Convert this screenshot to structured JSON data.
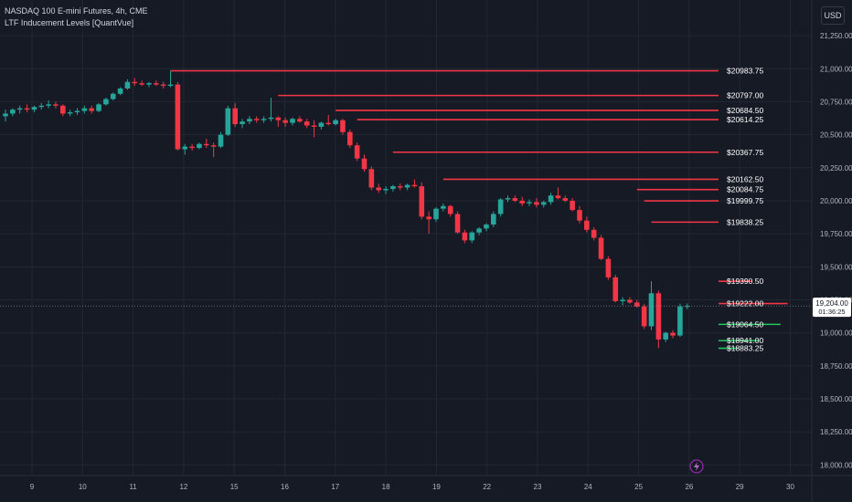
{
  "legend": {
    "symbol_line": "NASDAQ 100 E-mini Futures, 4h, CME",
    "indicator_line": "LTF Inducement Levels [QuantVue]"
  },
  "currency_button": "USD",
  "current_price": {
    "value": "19,204.00",
    "countdown": "01:36:25"
  },
  "colors": {
    "background": "#161a25",
    "grid": "#232733",
    "axis_text": "#b2b5be",
    "bull": "#26a69a",
    "bear": "#f23645",
    "resistance_line": "#f23645",
    "support_line": "#22c55e",
    "level_label": "#ffffff",
    "price_tag_bg": "#ffffff"
  },
  "icons": {
    "bottom_marker": "lightning-bolt-icon"
  },
  "chart_data": {
    "type": "candlestick",
    "x_tick_labels": [
      "9",
      "10",
      "11",
      "12",
      "15",
      "16",
      "17",
      "18",
      "19",
      "22",
      "23",
      "24",
      "25",
      "26",
      "29",
      "30"
    ],
    "y_ticks": [
      18000,
      18250,
      18500,
      18750,
      19000,
      19250,
      19500,
      19750,
      20000,
      20250,
      20500,
      20750,
      21000,
      21250
    ],
    "y_tick_labels": [
      "18,000.00",
      "18,250.00",
      "18,500.00",
      "18,750.00",
      "19,000.00",
      "19,250.00",
      "19,500.00",
      "19,750.00",
      "20,000.00",
      "20,250.00",
      "20,500.00",
      "20,750.00",
      "21,000.00",
      "21,250.00"
    ],
    "ylim": [
      17920,
      21520
    ],
    "candles": [
      [
        20640,
        20690,
        20600,
        20660
      ],
      [
        20660,
        20700,
        20640,
        20690
      ],
      [
        20690,
        20720,
        20660,
        20700
      ],
      [
        20700,
        20730,
        20670,
        20690
      ],
      [
        20690,
        20720,
        20670,
        20710
      ],
      [
        20710,
        20740,
        20690,
        20720
      ],
      [
        20720,
        20760,
        20700,
        20730
      ],
      [
        20730,
        20750,
        20700,
        20720
      ],
      [
        20720,
        20730,
        20640,
        20660
      ],
      [
        20660,
        20690,
        20640,
        20670
      ],
      [
        20670,
        20700,
        20650,
        20680
      ],
      [
        20680,
        20720,
        20660,
        20700
      ],
      [
        20700,
        20720,
        20660,
        20680
      ],
      [
        20680,
        20740,
        20670,
        20730
      ],
      [
        20730,
        20780,
        20720,
        20770
      ],
      [
        20770,
        20820,
        20760,
        20810
      ],
      [
        20810,
        20860,
        20800,
        20850
      ],
      [
        20850,
        20920,
        20840,
        20900
      ],
      [
        20900,
        20930,
        20870,
        20890
      ],
      [
        20890,
        20910,
        20870,
        20880
      ],
      [
        20880,
        20900,
        20860,
        20890
      ],
      [
        20890,
        20910,
        20870,
        20880
      ],
      [
        20880,
        20900,
        20850,
        20870
      ],
      [
        20870,
        20984,
        20860,
        20880
      ],
      [
        20880,
        20900,
        20380,
        20390
      ],
      [
        20390,
        20430,
        20350,
        20410
      ],
      [
        20410,
        20430,
        20380,
        20400
      ],
      [
        20400,
        20440,
        20390,
        20430
      ],
      [
        20430,
        20470,
        20400,
        20420
      ],
      [
        20420,
        20440,
        20330,
        20410
      ],
      [
        20410,
        20520,
        20400,
        20500
      ],
      [
        20500,
        20720,
        20490,
        20700
      ],
      [
        20700,
        20740,
        20560,
        20580
      ],
      [
        20580,
        20620,
        20550,
        20600
      ],
      [
        20600,
        20640,
        20580,
        20620
      ],
      [
        20620,
        20640,
        20590,
        20610
      ],
      [
        20610,
        20640,
        20590,
        20620
      ],
      [
        20620,
        20780,
        20600,
        20630
      ],
      [
        20630,
        20640,
        20560,
        20610
      ],
      [
        20610,
        20630,
        20560,
        20590
      ],
      [
        20590,
        20630,
        20570,
        20620
      ],
      [
        20620,
        20640,
        20590,
        20600
      ],
      [
        20600,
        20620,
        20550,
        20570
      ],
      [
        20570,
        20610,
        20480,
        20560
      ],
      [
        20560,
        20600,
        20540,
        20590
      ],
      [
        20590,
        20650,
        20570,
        20580
      ],
      [
        20580,
        20620,
        20570,
        20610
      ],
      [
        20610,
        20620,
        20500,
        20520
      ],
      [
        20520,
        20540,
        20400,
        20420
      ],
      [
        20420,
        20440,
        20300,
        20320
      ],
      [
        20320,
        20350,
        20220,
        20240
      ],
      [
        20240,
        20260,
        20080,
        20100
      ],
      [
        20100,
        20130,
        20060,
        20080
      ],
      [
        20080,
        20110,
        20050,
        20090
      ],
      [
        20090,
        20120,
        20070,
        20110
      ],
      [
        20110,
        20130,
        20080,
        20100
      ],
      [
        20100,
        20130,
        20080,
        20120
      ],
      [
        20120,
        20162,
        20100,
        20110
      ],
      [
        20110,
        20140,
        19860,
        19880
      ],
      [
        19880,
        19920,
        19750,
        19860
      ],
      [
        19860,
        19950,
        19840,
        19940
      ],
      [
        19940,
        19980,
        19920,
        19960
      ],
      [
        19960,
        19970,
        19880,
        19900
      ],
      [
        19900,
        19920,
        19750,
        19760
      ],
      [
        19760,
        19780,
        19680,
        19700
      ],
      [
        19700,
        19770,
        19680,
        19760
      ],
      [
        19760,
        19800,
        19740,
        19790
      ],
      [
        19790,
        19830,
        19770,
        19820
      ],
      [
        19820,
        19920,
        19800,
        19900
      ],
      [
        19900,
        20020,
        19880,
        20010
      ],
      [
        20010,
        20040,
        19990,
        20020
      ],
      [
        20020,
        20040,
        19990,
        20000
      ],
      [
        20000,
        20030,
        19960,
        19980
      ],
      [
        19980,
        20010,
        19960,
        19990
      ],
      [
        19990,
        20020,
        19950,
        19970
      ],
      [
        19970,
        20000,
        19950,
        19990
      ],
      [
        19990,
        20060,
        19970,
        20040
      ],
      [
        20040,
        20100,
        20010,
        20020
      ],
      [
        20020,
        20040,
        19990,
        20000
      ],
      [
        20000,
        20020,
        19920,
        19930
      ],
      [
        19930,
        19960,
        19830,
        19850
      ],
      [
        19850,
        19880,
        19760,
        19780
      ],
      [
        19780,
        19800,
        19700,
        19720
      ],
      [
        19720,
        19740,
        19550,
        19560
      ],
      [
        19560,
        19580,
        19400,
        19420
      ],
      [
        19420,
        19440,
        19230,
        19240
      ],
      [
        19240,
        19270,
        19210,
        19250
      ],
      [
        19250,
        19270,
        19220,
        19230
      ],
      [
        19230,
        19250,
        19190,
        19200
      ],
      [
        19200,
        19220,
        19030,
        19050
      ],
      [
        19050,
        19391,
        19020,
        19300
      ],
      [
        19300,
        19320,
        18884,
        18950
      ],
      [
        18950,
        19010,
        18930,
        19000
      ],
      [
        19000,
        19020,
        18960,
        18980
      ],
      [
        18980,
        19220,
        18970,
        19200
      ],
      [
        19200,
        19222,
        19180,
        19204
      ]
    ],
    "levels": [
      {
        "price": 20983.75,
        "label": "$20983.75",
        "kind": "resistance",
        "from": 23
      },
      {
        "price": 20797.0,
        "label": "$20797.00",
        "kind": "resistance",
        "from": 38
      },
      {
        "price": 20684.5,
        "label": "$20684.50",
        "kind": "resistance",
        "from": 46
      },
      {
        "price": 20614.25,
        "label": "$20614.25",
        "kind": "resistance",
        "from": 49
      },
      {
        "price": 20367.75,
        "label": "$20367.75",
        "kind": "resistance",
        "from": 54
      },
      {
        "price": 20162.5,
        "label": "$20162.50",
        "kind": "resistance",
        "from": 61
      },
      {
        "price": 20084.75,
        "label": "$20084.75",
        "kind": "resistance",
        "from": 88
      },
      {
        "price": 19999.75,
        "label": "$19999.75",
        "kind": "resistance",
        "from": 89
      },
      {
        "price": 19838.25,
        "label": "$19838.25",
        "kind": "resistance",
        "from": 90
      },
      {
        "price": 19390.5,
        "label": "$19390.50",
        "kind": "resistance",
        "from": 104
      },
      {
        "price": 19222.0,
        "label": "$19222.00",
        "kind": "resistance",
        "from": 109
      },
      {
        "price": 19064.5,
        "label": "$19064.50",
        "kind": "support",
        "from": 108
      },
      {
        "price": 18941.0,
        "label": "$18941.00",
        "kind": "support",
        "from": 105
      },
      {
        "price": 18883.25,
        "label": "$18883.25",
        "kind": "support",
        "from": 102
      }
    ]
  }
}
